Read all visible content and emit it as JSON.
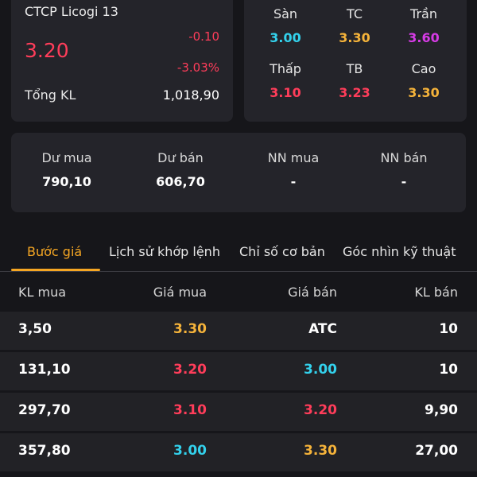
{
  "stock": {
    "name": "CTCP Licogi 13",
    "price": "3.20",
    "change": "-0.10",
    "change_pct": "-3.03%",
    "volume_label": "Tổng KL",
    "volume_value": "1,018,90",
    "price_color": "#ff3d5a"
  },
  "price_levels": [
    {
      "label": "Sàn",
      "value": "3.00",
      "color": "#33d1ec"
    },
    {
      "label": "TC",
      "value": "3.30",
      "color": "#f5b33a"
    },
    {
      "label": "Trần",
      "value": "3.60",
      "color": "#d63be6"
    },
    {
      "label": "Thấp",
      "value": "3.10",
      "color": "#ff3d5a"
    },
    {
      "label": "TB",
      "value": "3.23",
      "color": "#ff3d5a"
    },
    {
      "label": "Cao",
      "value": "3.30",
      "color": "#f5b33a"
    }
  ],
  "depth": [
    {
      "label": "Dư mua",
      "value": "790,10"
    },
    {
      "label": "Dư bán",
      "value": "606,70"
    },
    {
      "label": "NN mua",
      "value": "-"
    },
    {
      "label": "NN bán",
      "value": "-"
    }
  ],
  "tabs": [
    {
      "label": "Bước giá",
      "active": true
    },
    {
      "label": "Lịch sử khớp lệnh",
      "active": false
    },
    {
      "label": "Chỉ số cơ bản",
      "active": false
    },
    {
      "label": "Góc nhìn kỹ thuật",
      "active": false
    }
  ],
  "table": {
    "headers": [
      "KL mua",
      "Giá mua",
      "Giá bán",
      "KL bán"
    ],
    "rows": [
      {
        "kl_mua": "3,50",
        "gia_mua": "3.30",
        "gia_mua_color": "#f5b33a",
        "gia_ban": "ATC",
        "gia_ban_color": "#ffffff",
        "kl_ban": "10"
      },
      {
        "kl_mua": "131,10",
        "gia_mua": "3.20",
        "gia_mua_color": "#ff3d5a",
        "gia_ban": "3.00",
        "gia_ban_color": "#33d1ec",
        "kl_ban": "10"
      },
      {
        "kl_mua": "297,70",
        "gia_mua": "3.10",
        "gia_mua_color": "#ff3d5a",
        "gia_ban": "3.20",
        "gia_ban_color": "#ff3d5a",
        "kl_ban": "9,90"
      },
      {
        "kl_mua": "357,80",
        "gia_mua": "3.00",
        "gia_mua_color": "#33d1ec",
        "gia_ban": "3.30",
        "gia_ban_color": "#f5b33a",
        "kl_ban": "27,00"
      }
    ]
  },
  "colors": {
    "accent": "#f5a623",
    "background": "#16161a",
    "card": "#24242a"
  }
}
